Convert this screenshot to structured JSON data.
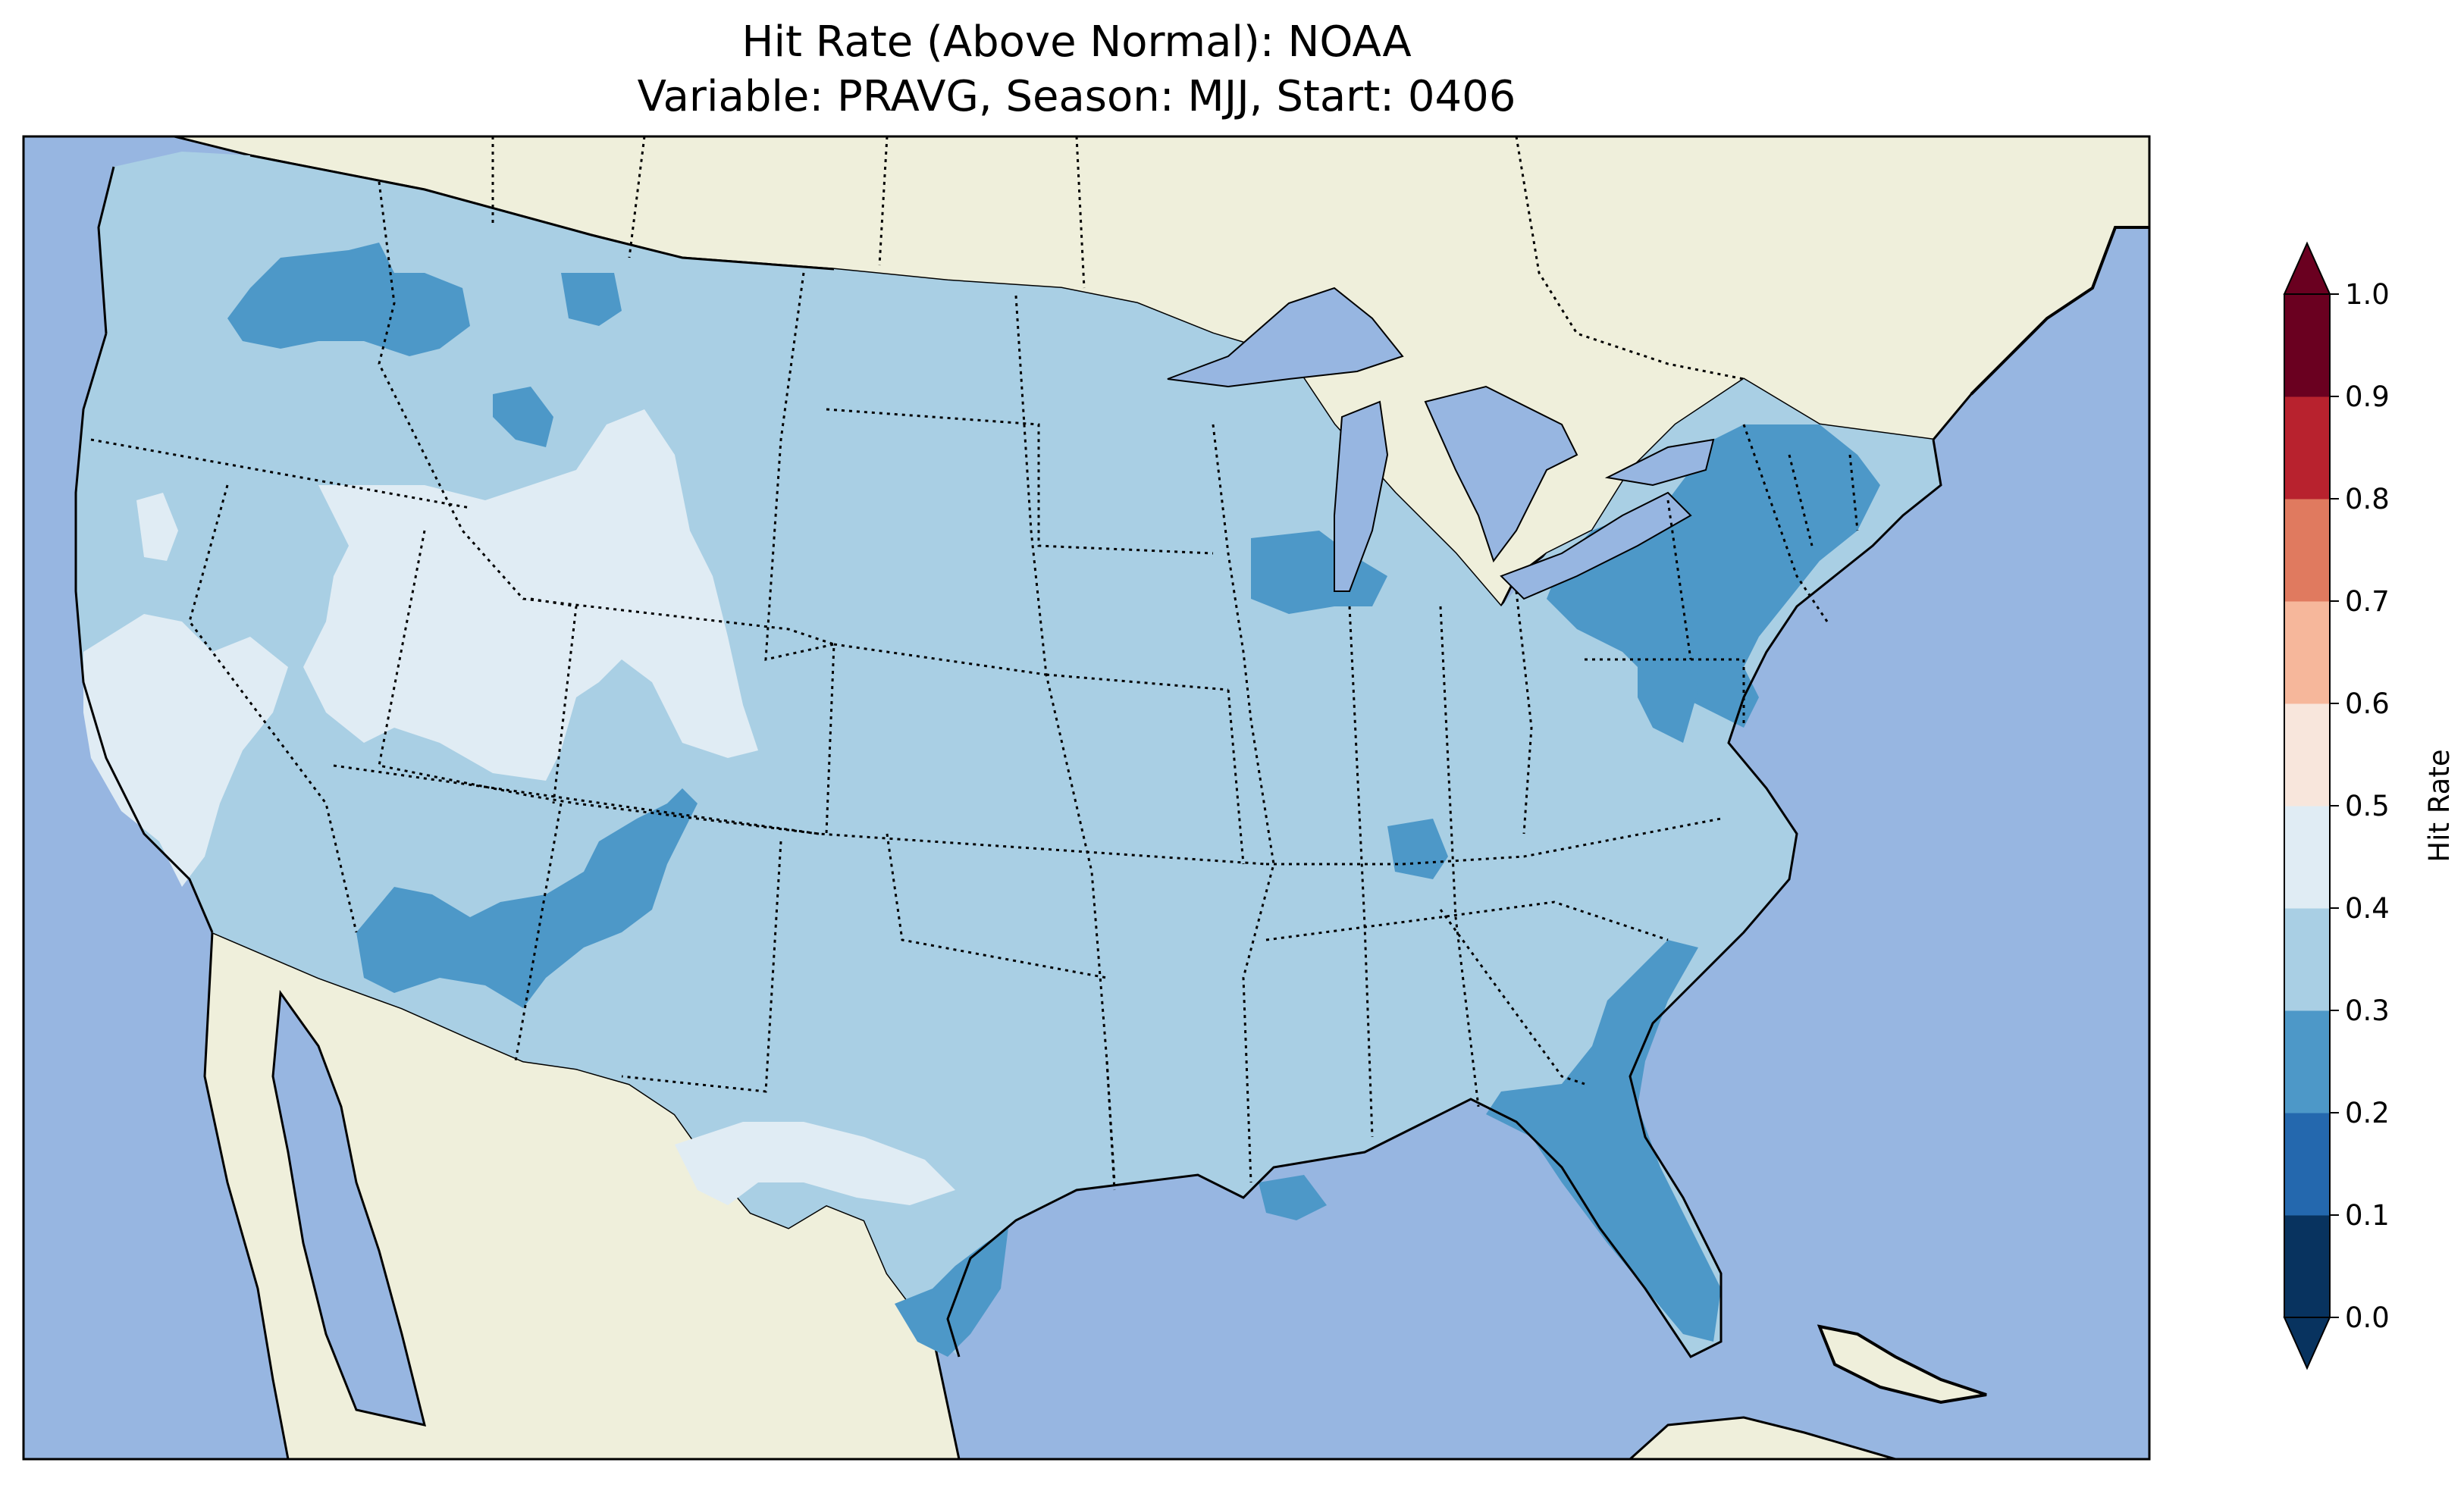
{
  "title": {
    "line1": "Hit Rate (Above Normal): NOAA",
    "line2": "Variable: PRAVG, Season: MJJ, Start: 0406"
  },
  "colors": {
    "ocean": "#97b6e1",
    "land": "#efefdb",
    "conus_base": "#a9cfe4"
  },
  "colorbar": {
    "label": "Hit Rate",
    "ticks": [
      "0.0",
      "0.1",
      "0.2",
      "0.3",
      "0.4",
      "0.5",
      "0.6",
      "0.7",
      "0.8",
      "0.9",
      "1.0"
    ],
    "colors": [
      "#053061",
      "#2166ac",
      "#4393c3",
      "#92c5de",
      "#d1e5f0",
      "#f7f7f7",
      "#fddbc7",
      "#f4a582",
      "#d6604d",
      "#b2182b",
      "#67001f"
    ],
    "bin_colors": [
      "#08335f",
      "#2468ae",
      "#4d98c8",
      "#a9cfe4",
      "#e0ecf4",
      "#f8e6dc",
      "#f6b79b",
      "#e07a5f",
      "#b8222e",
      "#6a0020"
    ],
    "extend": "both"
  },
  "map_regions": [
    {
      "region": "Oregon/Idaho north",
      "value_bin": "0.2-0.3"
    },
    {
      "region": "Great Basin / Utah / Wyoming",
      "value_bin": "0.4-0.5"
    },
    {
      "region": "California central valley",
      "value_bin": "0.4-0.5"
    },
    {
      "region": "Arizona / New Mexico",
      "value_bin": "0.2-0.3"
    },
    {
      "region": "Northeast / Pennsylvania / New England",
      "value_bin": "0.2-0.3"
    },
    {
      "region": "Florida / Georgia coast",
      "value_bin": "0.2-0.3"
    },
    {
      "region": "South Texas coast",
      "value_bin": "0.2-0.3"
    },
    {
      "region": "West Texas",
      "value_bin": "0.4-0.5"
    },
    {
      "region": "Central & eastern US",
      "value_bin": "0.3-0.4"
    }
  ]
}
